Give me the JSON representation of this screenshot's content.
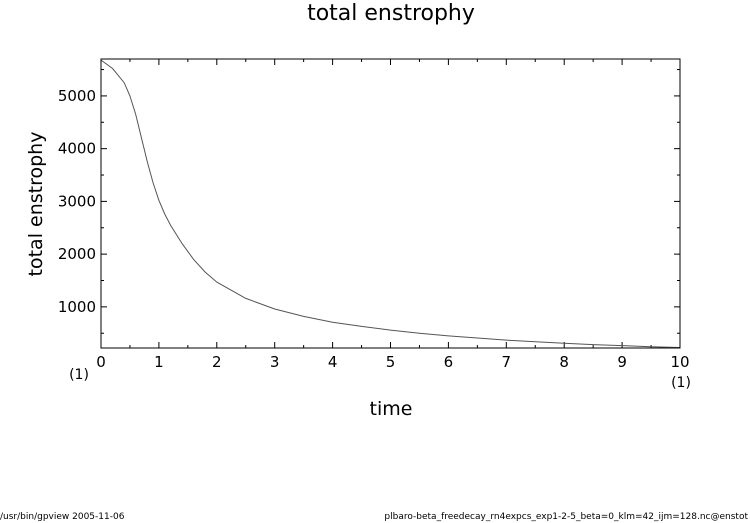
{
  "footer": {
    "program": "/usr/bin/gpview  2005-11-06",
    "source": "plbaro-beta_freedecay_rn4expcs_exp1-2-5_beta=0_klm=42_ijm=128.nc@enstot"
  },
  "chart_data": {
    "type": "line",
    "title": "total enstrophy",
    "xlabel": "time",
    "ylabel": "total enstrophy",
    "x_unit_label": "(1)",
    "xlim": [
      0,
      10
    ],
    "ylim": [
      220,
      5700
    ],
    "xticks": [
      0,
      1,
      2,
      3,
      4,
      5,
      6,
      7,
      8,
      9,
      10
    ],
    "yticks": [
      1000,
      2000,
      3000,
      4000,
      5000
    ],
    "grid": false,
    "line_color": "#555555",
    "series": [
      {
        "x": [
          0,
          0.2,
          0.4,
          0.5,
          0.6,
          0.7,
          0.8,
          0.9,
          1.0,
          1.1,
          1.2,
          1.4,
          1.6,
          1.8,
          2.0,
          2.5,
          3.0,
          3.5,
          4.0,
          4.5,
          5.0,
          5.5,
          6.0,
          6.5,
          7.0,
          7.5,
          8.0,
          8.5,
          9.0,
          9.5,
          10.0
        ],
        "y": [
          5680,
          5520,
          5250,
          5000,
          4650,
          4200,
          3750,
          3350,
          3020,
          2760,
          2550,
          2200,
          1900,
          1660,
          1470,
          1160,
          960,
          820,
          710,
          630,
          560,
          500,
          450,
          410,
          370,
          340,
          310,
          285,
          265,
          245,
          230
        ]
      }
    ]
  }
}
